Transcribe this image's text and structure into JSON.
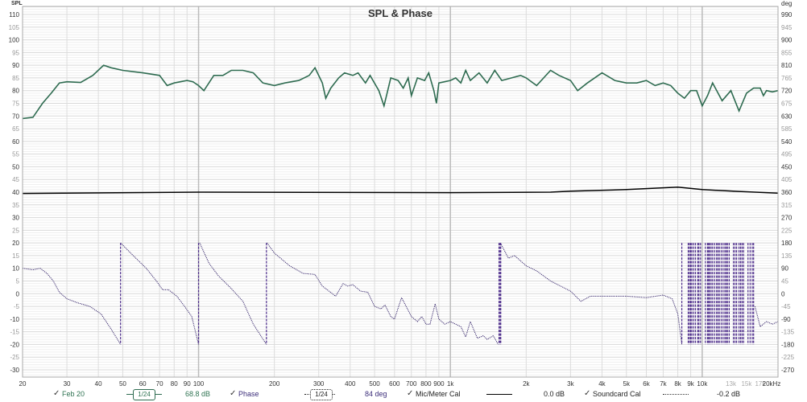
{
  "chart_data": {
    "type": "line",
    "title": "SPL & Phase",
    "ylabel_left": "SPL",
    "ylabel_right": "deg",
    "xlabel": "",
    "xscale": "log",
    "xlim": [
      20,
      20000
    ],
    "ylim_left": [
      -30,
      110
    ],
    "ylim_right": [
      -270,
      990
    ],
    "grid": true,
    "x_ticks": [
      {
        "v": 20,
        "label": "20"
      },
      {
        "v": 30,
        "label": "30"
      },
      {
        "v": 40,
        "label": "40"
      },
      {
        "v": 50,
        "label": "50"
      },
      {
        "v": 60,
        "label": "60"
      },
      {
        "v": 70,
        "label": "70"
      },
      {
        "v": 80,
        "label": "80"
      },
      {
        "v": 90,
        "label": "90"
      },
      {
        "v": 100,
        "label": "100"
      },
      {
        "v": 200,
        "label": "200"
      },
      {
        "v": 300,
        "label": "300"
      },
      {
        "v": 400,
        "label": "400"
      },
      {
        "v": 500,
        "label": "500"
      },
      {
        "v": 600,
        "label": "600"
      },
      {
        "v": 700,
        "label": "700"
      },
      {
        "v": 800,
        "label": "800"
      },
      {
        "v": 900,
        "label": "900"
      },
      {
        "v": 1000,
        "label": "1k"
      },
      {
        "v": 2000,
        "label": "2k"
      },
      {
        "v": 3000,
        "label": "3k"
      },
      {
        "v": 4000,
        "label": "4k"
      },
      {
        "v": 5000,
        "label": "5k"
      },
      {
        "v": 6000,
        "label": "6k"
      },
      {
        "v": 7000,
        "label": "7k"
      },
      {
        "v": 8000,
        "label": "8k"
      },
      {
        "v": 9000,
        "label": "9k"
      },
      {
        "v": 10000,
        "label": "10k"
      },
      {
        "v": 13000,
        "label": "13k",
        "muted": true
      },
      {
        "v": 15000,
        "label": "15k",
        "muted": true
      },
      {
        "v": 17000,
        "label": "17k",
        "muted": true
      },
      {
        "v": 20000,
        "label": "20kHz"
      }
    ],
    "series": [
      {
        "name": "Feb 20",
        "axis": "left",
        "color": "#2e6b50",
        "style": "solid",
        "points": [
          [
            20,
            69
          ],
          [
            22,
            69.5
          ],
          [
            24,
            75
          ],
          [
            26,
            79
          ],
          [
            28,
            83
          ],
          [
            30,
            83.5
          ],
          [
            34,
            83.2
          ],
          [
            38,
            86
          ],
          [
            42,
            90
          ],
          [
            45,
            89
          ],
          [
            50,
            88
          ],
          [
            60,
            87
          ],
          [
            70,
            86
          ],
          [
            75,
            82
          ],
          [
            80,
            83
          ],
          [
            90,
            84
          ],
          [
            95,
            83.5
          ],
          [
            100,
            82
          ],
          [
            105,
            80
          ],
          [
            115,
            86
          ],
          [
            125,
            86
          ],
          [
            135,
            88
          ],
          [
            150,
            88
          ],
          [
            165,
            87
          ],
          [
            180,
            83
          ],
          [
            200,
            82
          ],
          [
            220,
            83
          ],
          [
            250,
            84
          ],
          [
            275,
            86
          ],
          [
            290,
            89
          ],
          [
            310,
            83
          ],
          [
            320,
            77
          ],
          [
            335,
            81
          ],
          [
            360,
            85
          ],
          [
            380,
            87
          ],
          [
            410,
            86
          ],
          [
            430,
            87
          ],
          [
            460,
            83
          ],
          [
            480,
            86
          ],
          [
            520,
            80
          ],
          [
            545,
            74
          ],
          [
            580,
            85
          ],
          [
            620,
            84
          ],
          [
            650,
            81
          ],
          [
            680,
            85
          ],
          [
            700,
            78
          ],
          [
            740,
            85
          ],
          [
            790,
            84
          ],
          [
            820,
            87
          ],
          [
            860,
            80
          ],
          [
            880,
            75
          ],
          [
            900,
            83
          ],
          [
            1000,
            84
          ],
          [
            1050,
            85
          ],
          [
            1100,
            83
          ],
          [
            1150,
            88
          ],
          [
            1200,
            84
          ],
          [
            1300,
            87
          ],
          [
            1400,
            83
          ],
          [
            1500,
            88
          ],
          [
            1600,
            84
          ],
          [
            1750,
            85
          ],
          [
            1900,
            86
          ],
          [
            2000,
            85
          ],
          [
            2200,
            82
          ],
          [
            2500,
            88
          ],
          [
            2700,
            86
          ],
          [
            3000,
            84
          ],
          [
            3200,
            80
          ],
          [
            3500,
            83
          ],
          [
            4000,
            87
          ],
          [
            4500,
            84
          ],
          [
            5000,
            83
          ],
          [
            5500,
            83
          ],
          [
            6000,
            84
          ],
          [
            6500,
            82
          ],
          [
            7000,
            83
          ],
          [
            7500,
            82
          ],
          [
            8000,
            79
          ],
          [
            8500,
            77
          ],
          [
            9000,
            80
          ],
          [
            9500,
            80
          ],
          [
            10000,
            74
          ],
          [
            10500,
            78
          ],
          [
            11000,
            83
          ],
          [
            12000,
            76
          ],
          [
            13000,
            80
          ],
          [
            14000,
            72
          ],
          [
            15000,
            79
          ],
          [
            16000,
            81
          ],
          [
            17000,
            81
          ],
          [
            17500,
            78
          ],
          [
            18000,
            80
          ],
          [
            19000,
            79.5
          ],
          [
            20000,
            80
          ]
        ]
      },
      {
        "name": "Mic/Meter Cal",
        "axis": "left",
        "color": "#000000",
        "style": "solid",
        "points": [
          [
            20,
            39.5
          ],
          [
            100,
            40
          ],
          [
            1000,
            39.8
          ],
          [
            2500,
            40
          ],
          [
            3000,
            40.4
          ],
          [
            5000,
            41
          ],
          [
            8000,
            42
          ],
          [
            10000,
            41
          ],
          [
            14000,
            40.3
          ],
          [
            20000,
            39.6
          ]
        ]
      },
      {
        "name": "Phase",
        "axis": "right",
        "unit": "deg",
        "color": "#3a2a6e",
        "style": "dotted",
        "segments": [
          [
            [
              20,
              90
            ],
            [
              22,
              85
            ],
            [
              23.5,
              90
            ],
            [
              25,
              72
            ],
            [
              26.5,
              45
            ],
            [
              28,
              5
            ],
            [
              30,
              -18
            ],
            [
              33,
              -32
            ],
            [
              37,
              -45
            ],
            [
              41,
              -72
            ],
            [
              45,
              -126
            ],
            [
              49,
              -180
            ]
          ],
          [
            [
              49,
              180
            ],
            [
              55,
              135
            ],
            [
              62,
              90
            ],
            [
              68,
              45
            ],
            [
              72,
              14
            ],
            [
              76,
              14
            ],
            [
              82,
              -9
            ],
            [
              88,
              -45
            ],
            [
              94,
              -81
            ],
            [
              100,
              -180
            ]
          ],
          [
            [
              101,
              180
            ],
            [
              110,
              108
            ],
            [
              120,
              63
            ],
            [
              135,
              18
            ],
            [
              150,
              -27
            ],
            [
              165,
              -108
            ],
            [
              186,
              -180
            ]
          ],
          [
            [
              187,
              180
            ],
            [
              200,
              144
            ],
            [
              230,
              99
            ],
            [
              260,
              72
            ],
            [
              290,
              68
            ],
            [
              310,
              27
            ],
            [
              340,
              0
            ],
            [
              350,
              -9
            ],
            [
              375,
              36
            ],
            [
              390,
              27
            ],
            [
              410,
              32
            ],
            [
              440,
              9
            ],
            [
              470,
              5
            ],
            [
              500,
              -45
            ],
            [
              530,
              -54
            ],
            [
              550,
              -40
            ],
            [
              580,
              -81
            ],
            [
              600,
              -90
            ],
            [
              640,
              -14
            ],
            [
              700,
              -81
            ],
            [
              740,
              -99
            ],
            [
              770,
              -81
            ],
            [
              800,
              -108
            ],
            [
              830,
              -108
            ],
            [
              870,
              -36
            ],
            [
              900,
              -90
            ],
            [
              950,
              -108
            ],
            [
              1000,
              -99
            ],
            [
              1050,
              -108
            ],
            [
              1100,
              -117
            ],
            [
              1150,
              -153
            ],
            [
              1200,
              -99
            ],
            [
              1280,
              -158
            ],
            [
              1350,
              -149
            ],
            [
              1400,
              -162
            ],
            [
              1480,
              -149
            ],
            [
              1550,
              -180
            ]
          ],
          [
            [
              1580,
              180
            ],
            [
              1700,
              126
            ],
            [
              1800,
              135
            ],
            [
              2000,
              99
            ],
            [
              2200,
              81
            ],
            [
              2500,
              45
            ],
            [
              3000,
              9
            ],
            [
              3300,
              -27
            ],
            [
              3600,
              -9
            ],
            [
              4000,
              -9
            ],
            [
              5000,
              -9
            ],
            [
              6000,
              -14
            ],
            [
              7000,
              -5
            ],
            [
              7600,
              -18
            ],
            [
              8000,
              -72
            ],
            [
              8300,
              -180
            ]
          ],
          [
            [
              16200,
              -45
            ],
            [
              17000,
              -117
            ],
            [
              18000,
              -99
            ],
            [
              19000,
              -108
            ],
            [
              20000,
              -99
            ]
          ]
        ],
        "wrap_freqs": [
          49,
          100,
          186,
          1560,
          1575,
          1585,
          8300,
          8800,
          8900,
          9000,
          9100,
          9250,
          9400,
          9600,
          9700,
          9850,
          10300,
          10500,
          10600,
          10700,
          10850,
          11000,
          11200,
          11400,
          11550,
          11700,
          11900,
          12100,
          12300,
          12450,
          12600,
          12800,
          13300,
          13500,
          13700,
          14000,
          14200,
          14400,
          14600,
          15200,
          15500,
          15800,
          16000
        ]
      }
    ]
  },
  "legend": {
    "items": [
      {
        "label": "Feb 20",
        "smoothing": "1/24",
        "value": "68.8 dB"
      },
      {
        "label": "Phase",
        "smoothing": "1/24",
        "value": "84 deg"
      },
      {
        "label": "Mic/Meter Cal",
        "value": "0.0 dB"
      },
      {
        "label": "Soundcard Cal",
        "value": "-0.2 dB"
      }
    ],
    "check": "✓"
  }
}
